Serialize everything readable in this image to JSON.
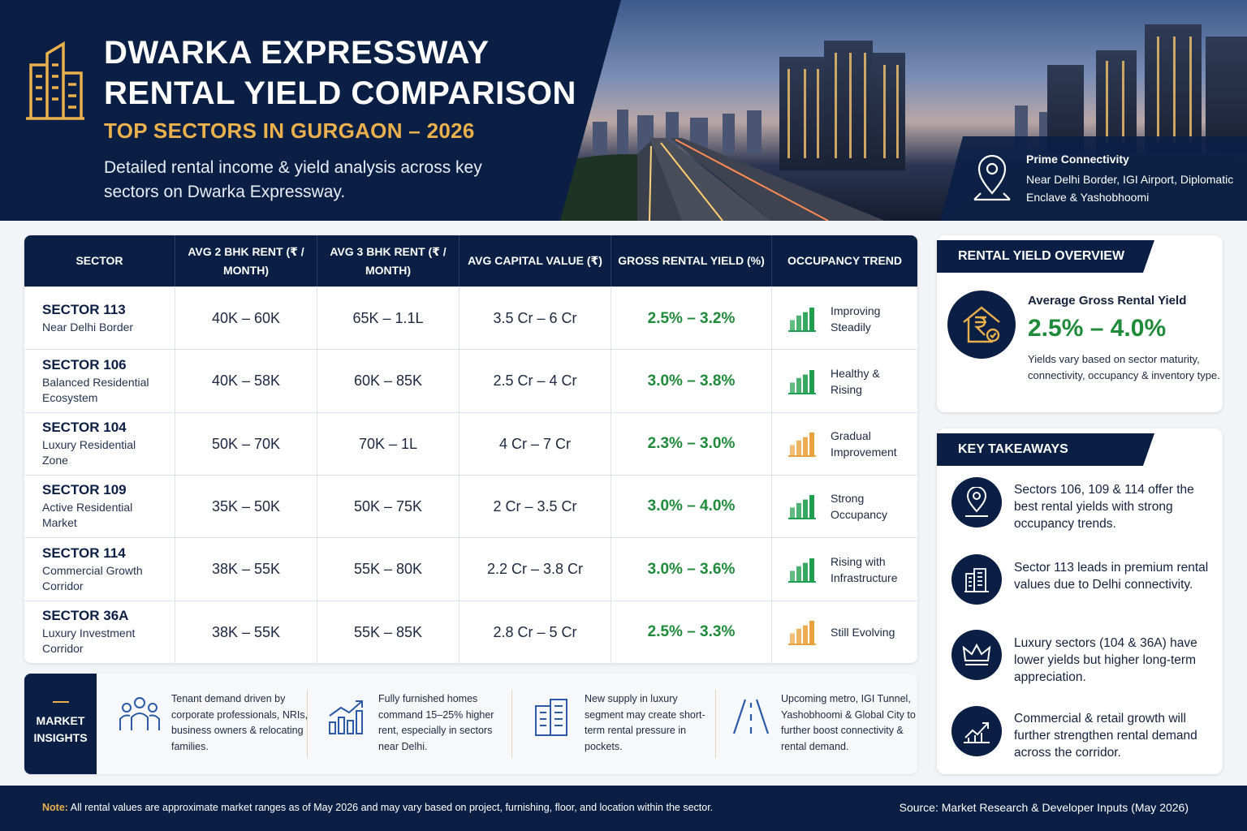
{
  "header": {
    "title_line1": "DWARKA EXPRESSWAY",
    "title_line2": "RENTAL YIELD COMPARISON",
    "subtitle": "TOP SECTORS IN GURGAON – 2026",
    "description": "Detailed rental income & yield analysis across key sectors on Dwarka Expressway.",
    "connectivity": {
      "title": "Prime Connectivity",
      "text": "Near Delhi Border, IGI Airport, Diplomatic Enclave & Yashobhoomi",
      "icon": "location-pin-icon"
    }
  },
  "table": {
    "headers": [
      "SECTOR",
      "AVG 2 BHK RENT (₹ / MONTH)",
      "AVG 3 BHK RENT (₹ / MONTH)",
      "AVG CAPITAL VALUE (₹)",
      "GROSS RENTAL YIELD (%)",
      "OCCUPANCY TREND"
    ],
    "rows": [
      {
        "sector": "SECTOR 113",
        "desc": "Near Delhi Border",
        "rent2": "40K – 60K",
        "rent3": "65K – 1.1L",
        "capital": "3.5 Cr – 6 Cr",
        "yield": "2.5% – 3.2%",
        "trend": "Improving Steadily",
        "trend_color": "#1f9e4f"
      },
      {
        "sector": "SECTOR 106",
        "desc": "Balanced Residential Ecosystem",
        "rent2": "40K – 58K",
        "rent3": "60K – 85K",
        "capital": "2.5 Cr – 4 Cr",
        "yield": "3.0% – 3.8%",
        "trend": "Healthy & Rising",
        "trend_color": "#1f9e4f"
      },
      {
        "sector": "SECTOR 104",
        "desc": "Luxury Residential Zone",
        "rent2": "50K – 70K",
        "rent3": "70K – 1L",
        "capital": "4 Cr – 7 Cr",
        "yield": "2.3% – 3.0%",
        "trend": "Gradual Improvement",
        "trend_color": "#e9a23b"
      },
      {
        "sector": "SECTOR 109",
        "desc": "Active Residential Market",
        "rent2": "35K – 50K",
        "rent3": "50K – 75K",
        "capital": "2 Cr – 3.5 Cr",
        "yield": "3.0% – 4.0%",
        "trend": "Strong Occupancy",
        "trend_color": "#1f9e4f"
      },
      {
        "sector": "SECTOR 114",
        "desc": "Commercial Growth Corridor",
        "rent2": "38K – 55K",
        "rent3": "55K – 80K",
        "capital": "2.2 Cr – 3.8 Cr",
        "yield": "3.0% – 3.6%",
        "trend": "Rising with Infrastructure",
        "trend_color": "#1f9e4f"
      },
      {
        "sector": "SECTOR 36A",
        "desc": "Luxury Investment Corridor",
        "rent2": "38K – 55K",
        "rent3": "55K – 85K",
        "capital": "2.8 Cr – 5 Cr",
        "yield": "2.5% – 3.3%",
        "trend": "Still Evolving",
        "trend_color": "#e9a23b"
      }
    ]
  },
  "insights": {
    "label_line1": "MARKET",
    "label_line2": "INSIGHTS",
    "items": [
      {
        "icon": "people-group-icon",
        "text": "Tenant demand driven by corporate professionals, NRIs, business owners & relocating families."
      },
      {
        "icon": "growth-chart-icon",
        "text": "Fully furnished homes command 15–25% higher rent, especially in sectors near Delhi."
      },
      {
        "icon": "building-icon",
        "text": "New supply in luxury segment may create short-term rental pressure in pockets."
      },
      {
        "icon": "road-icon",
        "text": "Upcoming metro, IGI Tunnel, Yashobhoomi & Global City to further boost connectivity & rental demand."
      }
    ]
  },
  "overview": {
    "heading": "RENTAL YIELD OVERVIEW",
    "label": "Average Gross Rental Yield",
    "value": "2.5% – 4.0%",
    "text": "Yields vary based on sector maturity, connectivity, occupancy & inventory type.",
    "icon": "house-rupee-icon"
  },
  "takeaways": {
    "heading": "KEY TAKEAWAYS",
    "items": [
      {
        "icon": "location-pin-icon",
        "text": "Sectors 106, 109 & 114 offer the best rental yields with strong occupancy trends."
      },
      {
        "icon": "city-building-icon",
        "text": "Sector 113 leads in premium rental values due to Delhi connectivity."
      },
      {
        "icon": "crown-icon",
        "text": "Luxury sectors (104 & 36A) have lower yields but higher long-term appreciation."
      },
      {
        "icon": "trend-up-icon",
        "text": "Commercial & retail growth will further strengthen rental demand across the corridor."
      }
    ]
  },
  "footer": {
    "note_label": "Note:",
    "note_text": "All rental values are approximate market ranges as of May 2026 and may vary based on project, furnishing, floor, and location within the sector.",
    "source": "Source: Market Research & Developer Inputs (May 2026)"
  },
  "colors": {
    "navy": "#0b1f45",
    "gold": "#e9b04c",
    "green": "#1f8a3a"
  }
}
